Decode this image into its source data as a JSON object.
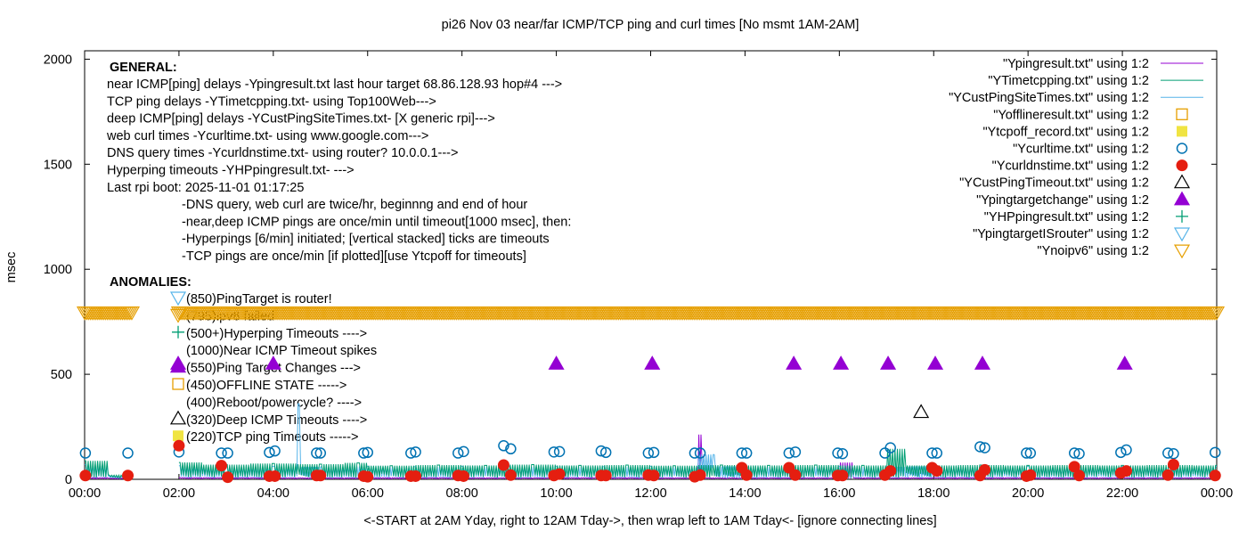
{
  "chart_data": {
    "type": "scatter",
    "title": "pi26 Nov 03  near/far ICMP/TCP ping and curl times [No msmt 1AM-2AM]",
    "xlabel": "<-START at 2AM Yday, right to 12AM Tday->, then wrap left to 1AM Tday<- [ignore connecting lines]",
    "ylabel": "msec",
    "xlim": [
      "00:00",
      "24:00"
    ],
    "ylim": [
      0,
      2040
    ],
    "x_ticks": [
      "00:00",
      "02:00",
      "04:00",
      "06:00",
      "08:00",
      "10:00",
      "12:00",
      "14:00",
      "16:00",
      "18:00",
      "20:00",
      "22:00",
      "00:00"
    ],
    "y_ticks": [
      "0",
      "500",
      "1000",
      "1500",
      "2000"
    ],
    "legend_position": "top-right",
    "legend": [
      {
        "label": "\"Ypingresult.txt\" using 1:2",
        "style": "line",
        "color": "#9400d3"
      },
      {
        "label": "\"YTimetcpping.txt\" using 1:2",
        "style": "line",
        "color": "#009e73"
      },
      {
        "label": "\"YCustPingSiteTimes.txt\" using 1:2",
        "style": "line",
        "color": "#56b4e9"
      },
      {
        "label": "\"Yofflineresult.txt\" using 1:2",
        "style": "open-square",
        "color": "#e69f00"
      },
      {
        "label": "\"Ytcpoff_record.txt\" using 1:2",
        "style": "filled-square",
        "color": "#f0e442"
      },
      {
        "label": "\"Ycurltime.txt\" using 1:2",
        "style": "open-circle",
        "color": "#0072b2"
      },
      {
        "label": "\"Ycurldnstime.txt\" using 1:2",
        "style": "filled-circle",
        "color": "#e51e10"
      },
      {
        "label": "\"YCustPingTimeout.txt\" using 1:2",
        "style": "open-triangle",
        "color": "#000000"
      },
      {
        "label": "\"Ypingtargetchange\" using 1:2",
        "style": "filled-triangle",
        "color": "#9400d3"
      },
      {
        "label": "\"YHPpingresult.txt\" using 1:2",
        "style": "plus",
        "color": "#009e73"
      },
      {
        "label": "\"YpingtargetISrouter\" using 1:2",
        "style": "open-down-triangle",
        "color": "#56b4e9"
      },
      {
        "label": "\"Ynoipv6\" using 1:2",
        "style": "open-down-triangle",
        "color": "#e69f00"
      }
    ],
    "series": {
      "ping_line": [
        [
          "00:00",
          8
        ],
        [
          "00:30",
          5
        ],
        [
          "01:00",
          4
        ],
        [
          "02:00",
          6
        ],
        [
          "03:00",
          8
        ],
        [
          "04:00",
          6
        ],
        [
          "05:00",
          7
        ],
        [
          "06:00",
          5
        ],
        [
          "07:00",
          8
        ],
        [
          "08:00",
          6
        ],
        [
          "09:00",
          7
        ],
        [
          "10:00",
          6
        ],
        [
          "11:00",
          8
        ],
        [
          "12:00",
          6
        ],
        [
          "13:00",
          7
        ],
        [
          "13:04",
          213
        ],
        [
          "13:06",
          6
        ],
        [
          "14:00",
          7
        ],
        [
          "15:00",
          6
        ],
        [
          "16:00",
          7
        ],
        [
          "16:16",
          80
        ],
        [
          "16:18",
          6
        ],
        [
          "17:00",
          7
        ],
        [
          "18:00",
          6
        ],
        [
          "19:00",
          8
        ],
        [
          "20:00",
          6
        ],
        [
          "21:00",
          7
        ],
        [
          "22:00",
          6
        ],
        [
          "23:00",
          7
        ],
        [
          "24:00",
          6
        ]
      ],
      "tcp_line": [
        [
          "00:00",
          88
        ],
        [
          "00:30",
          20
        ],
        [
          "01:00",
          15
        ],
        [
          "02:00",
          80
        ],
        [
          "02:30",
          25
        ],
        [
          "03:00",
          70
        ],
        [
          "03:30",
          20
        ],
        [
          "04:00",
          75
        ],
        [
          "04:30",
          25
        ],
        [
          "05:00",
          72
        ],
        [
          "05:30",
          20
        ],
        [
          "05:48",
          78
        ],
        [
          "06:00",
          30
        ],
        [
          "06:30",
          65
        ],
        [
          "07:00",
          20
        ],
        [
          "07:30",
          68
        ],
        [
          "08:00",
          25
        ],
        [
          "08:30",
          66
        ],
        [
          "09:00",
          20
        ],
        [
          "09:30",
          70
        ],
        [
          "10:00",
          25
        ],
        [
          "10:30",
          66
        ],
        [
          "11:00",
          20
        ],
        [
          "11:30",
          68
        ],
        [
          "12:00",
          25
        ],
        [
          "12:30",
          65
        ],
        [
          "13:00",
          20
        ],
        [
          "13:30",
          68
        ],
        [
          "14:00",
          25
        ],
        [
          "14:30",
          66
        ],
        [
          "15:00",
          20
        ],
        [
          "15:30",
          68
        ],
        [
          "16:00",
          25
        ],
        [
          "16:30",
          66
        ],
        [
          "17:00",
          20
        ],
        [
          "17:23",
          145
        ],
        [
          "17:25",
          30
        ],
        [
          "18:00",
          66
        ],
        [
          "18:30",
          20
        ],
        [
          "19:00",
          68
        ],
        [
          "19:30",
          25
        ],
        [
          "20:00",
          66
        ],
        [
          "20:30",
          20
        ],
        [
          "21:00",
          68
        ],
        [
          "21:30",
          25
        ],
        [
          "22:00",
          66
        ],
        [
          "22:30",
          20
        ],
        [
          "23:00",
          68
        ],
        [
          "23:30",
          25
        ],
        [
          "24:00",
          66
        ]
      ],
      "custping_line": [
        [
          "00:00",
          70
        ],
        [
          "00:30",
          15
        ],
        [
          "01:00",
          10
        ],
        [
          "02:00",
          65
        ],
        [
          "02:30",
          15
        ],
        [
          "03:00",
          60
        ],
        [
          "03:30",
          12
        ],
        [
          "04:00",
          62
        ],
        [
          "04:30",
          15
        ],
        [
          "04:33",
          360
        ],
        [
          "04:35",
          20
        ],
        [
          "05:00",
          60
        ],
        [
          "05:30",
          12
        ],
        [
          "06:00",
          62
        ],
        [
          "06:30",
          15
        ],
        [
          "07:00",
          60
        ],
        [
          "07:30",
          12
        ],
        [
          "08:00",
          62
        ],
        [
          "08:30",
          15
        ],
        [
          "09:00",
          60
        ],
        [
          "09:30",
          12
        ],
        [
          "10:00",
          62
        ],
        [
          "10:30",
          15
        ],
        [
          "11:00",
          60
        ],
        [
          "11:30",
          12
        ],
        [
          "12:00",
          62
        ],
        [
          "12:30",
          15
        ],
        [
          "13:00",
          60
        ],
        [
          "13:21",
          118
        ],
        [
          "13:23",
          15
        ],
        [
          "14:00",
          62
        ],
        [
          "14:30",
          12
        ],
        [
          "15:00",
          60
        ],
        [
          "15:30",
          15
        ],
        [
          "16:00",
          62
        ],
        [
          "16:30",
          12
        ],
        [
          "17:00",
          60
        ],
        [
          "17:30",
          15
        ],
        [
          "18:00",
          62
        ],
        [
          "18:30",
          12
        ],
        [
          "19:00",
          60
        ],
        [
          "19:30",
          15
        ],
        [
          "20:00",
          62
        ],
        [
          "20:30",
          12
        ],
        [
          "21:00",
          60
        ],
        [
          "21:30",
          15
        ],
        [
          "22:00",
          62
        ],
        [
          "22:30",
          12
        ],
        [
          "23:00",
          60
        ],
        [
          "23:30",
          15
        ],
        [
          "24:00",
          62
        ]
      ],
      "curltime": [
        [
          "00:01",
          125
        ],
        [
          "00:55",
          125
        ],
        [
          "02:00",
          130
        ],
        [
          "02:54",
          125
        ],
        [
          "03:02",
          125
        ],
        [
          "03:55",
          128
        ],
        [
          "04:02",
          135
        ],
        [
          "04:55",
          125
        ],
        [
          "05:00",
          125
        ],
        [
          "05:55",
          125
        ],
        [
          "06:00",
          128
        ],
        [
          "06:55",
          125
        ],
        [
          "07:01",
          130
        ],
        [
          "07:55",
          125
        ],
        [
          "08:02",
          132
        ],
        [
          "08:53",
          160
        ],
        [
          "09:02",
          145
        ],
        [
          "09:57",
          130
        ],
        [
          "10:04",
          132
        ],
        [
          "10:57",
          135
        ],
        [
          "11:03",
          128
        ],
        [
          "11:57",
          125
        ],
        [
          "12:04",
          128
        ],
        [
          "12:56",
          125
        ],
        [
          "13:03",
          125
        ],
        [
          "13:56",
          125
        ],
        [
          "14:02",
          125
        ],
        [
          "14:56",
          125
        ],
        [
          "15:04",
          130
        ],
        [
          "15:58",
          125
        ],
        [
          "16:04",
          122
        ],
        [
          "16:58",
          125
        ],
        [
          "17:05",
          150
        ],
        [
          "17:58",
          125
        ],
        [
          "18:04",
          125
        ],
        [
          "18:59",
          155
        ],
        [
          "19:05",
          150
        ],
        [
          "19:58",
          125
        ],
        [
          "20:03",
          125
        ],
        [
          "20:59",
          125
        ],
        [
          "21:05",
          122
        ],
        [
          "21:58",
          128
        ],
        [
          "22:05",
          140
        ],
        [
          "22:58",
          125
        ],
        [
          "23:05",
          122
        ],
        [
          "23:58",
          128
        ]
      ],
      "curldnstime": [
        [
          "00:01",
          18
        ],
        [
          "00:55",
          18
        ],
        [
          "02:00",
          160
        ],
        [
          "02:54",
          65
        ],
        [
          "03:02",
          10
        ],
        [
          "03:55",
          15
        ],
        [
          "04:02",
          15
        ],
        [
          "04:55",
          18
        ],
        [
          "05:00",
          18
        ],
        [
          "05:55",
          15
        ],
        [
          "06:00",
          12
        ],
        [
          "06:55",
          15
        ],
        [
          "07:01",
          15
        ],
        [
          "07:55",
          18
        ],
        [
          "08:02",
          15
        ],
        [
          "08:53",
          68
        ],
        [
          "09:02",
          20
        ],
        [
          "09:57",
          18
        ],
        [
          "10:04",
          25
        ],
        [
          "10:57",
          18
        ],
        [
          "11:03",
          18
        ],
        [
          "11:57",
          20
        ],
        [
          "12:04",
          18
        ],
        [
          "12:56",
          12
        ],
        [
          "13:03",
          20
        ],
        [
          "13:56",
          55
        ],
        [
          "14:02",
          20
        ],
        [
          "14:56",
          55
        ],
        [
          "15:04",
          20
        ],
        [
          "15:58",
          18
        ],
        [
          "16:04",
          18
        ],
        [
          "16:58",
          20
        ],
        [
          "17:05",
          40
        ],
        [
          "17:58",
          55
        ],
        [
          "18:04",
          40
        ],
        [
          "18:59",
          18
        ],
        [
          "19:05",
          45
        ],
        [
          "19:58",
          15
        ],
        [
          "20:03",
          20
        ],
        [
          "20:59",
          60
        ],
        [
          "21:05",
          18
        ],
        [
          "21:58",
          30
        ],
        [
          "22:05",
          40
        ],
        [
          "22:58",
          20
        ],
        [
          "23:05",
          70
        ],
        [
          "23:58",
          18
        ]
      ],
      "custping_timeout": [
        [
          "17:44",
          320
        ]
      ],
      "pingtargetchange": [
        [
          "01:59",
          550
        ],
        [
          "04:00",
          550
        ],
        [
          "10:00",
          550
        ],
        [
          "12:02",
          550
        ],
        [
          "15:02",
          550
        ],
        [
          "16:02",
          550
        ],
        [
          "17:02",
          550
        ],
        [
          "18:02",
          550
        ],
        [
          "19:02",
          550
        ],
        [
          "22:03",
          550
        ]
      ],
      "noipv6": {
        "value": 795,
        "ranges": [
          [
            "00:00",
            "01:00"
          ],
          [
            "02:00",
            "24:00"
          ]
        ]
      }
    }
  },
  "annotations": {
    "general_heading": "GENERAL:",
    "general_lines": [
      "near ICMP[ping] delays -Ypingresult.txt last hour target 68.86.128.93 hop#4 --->",
      "TCP ping delays -YTimetcpping.txt- using Top100Web--->",
      "deep ICMP[ping] delays -YCustPingSiteTimes.txt- [X generic rpi]--->",
      "web curl times -Ycurltime.txt- using www.google.com--->",
      "DNS query times -Ycurldnstime.txt- using router? 10.0.0.1--->",
      "Hyperping timeouts -YHPpingresult.txt- --->",
      "Last rpi boot: 2025-11-01 01:17:25"
    ],
    "notes": [
      "-DNS query, web curl are twice/hr, beginnng and end of hour",
      "-near,deep ICMP pings are once/min until timeout[1000 msec], then:",
      "  -Hyperpings [6/min] initiated; [vertical stacked] ticks are timeouts",
      "-TCP pings are once/min [if plotted][use Ytcpoff for timeouts]"
    ],
    "anomalies_heading": "ANOMALIES:",
    "anomalies": [
      {
        "label": "(850)PingTarget is router!",
        "marker": "open-down-triangle",
        "color": "#56b4e9"
      },
      {
        "label": "(795)ipv6 failed",
        "marker": "open-down-triangle",
        "color": "#e69f00"
      },
      {
        "label": "(500+)Hyperping Timeouts ---->",
        "marker": "plus",
        "color": "#009e73"
      },
      {
        "label": "(1000)Near ICMP Timeout spikes",
        "marker": "none",
        "color": ""
      },
      {
        "label": "(550)Ping Target Changes --->",
        "marker": "filled-triangle",
        "color": "#9400d3"
      },
      {
        "label": "(450)OFFLINE STATE ----->",
        "marker": "open-square",
        "color": "#e69f00"
      },
      {
        "label": "(400)Reboot/powercycle? ---->",
        "marker": "none",
        "color": ""
      },
      {
        "label": "(320)Deep ICMP Timeouts ---->",
        "marker": "open-triangle",
        "color": "#000000"
      },
      {
        "label": "(220)TCP ping Timeouts ----->",
        "marker": "filled-square",
        "color": "#f0e442"
      }
    ]
  }
}
